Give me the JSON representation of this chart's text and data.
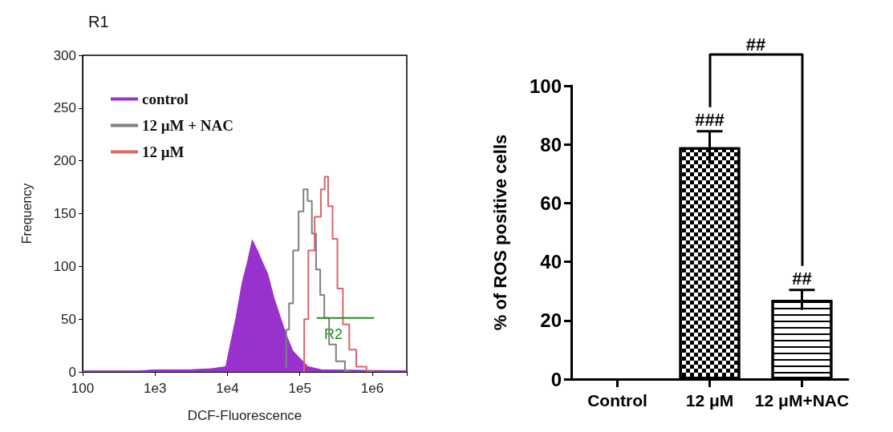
{
  "chart_data": [
    {
      "type": "step",
      "title": "R1",
      "xlabel": "DCF-Fluorescence",
      "ylabel": "Frequency",
      "log": "x",
      "xlim": [
        100,
        3000000
      ],
      "xticks": [
        100,
        {
          "value": 1000,
          "label": "1e3"
        },
        {
          "value": 10000,
          "label": "1e4"
        },
        {
          "value": 100000,
          "label": "1e5"
        },
        {
          "value": 1000000,
          "label": "1e6"
        }
      ],
      "ylim": [
        0,
        300
      ],
      "yticks": [
        0,
        50,
        100,
        150,
        200,
        250,
        300
      ],
      "legend": "top left",
      "annotations": [
        {
          "text": "R2",
          "x": 290000,
          "y": 29
        }
      ],
      "series": [
        {
          "name": "control",
          "type": "area",
          "color": "#9932cc",
          "x": [
            100,
            600,
            1000,
            3000,
            6000,
            9500,
            10500,
            13000,
            16000,
            19000,
            22000,
            26000,
            30000,
            36000,
            44000,
            55000,
            65000,
            80000,
            100000,
            130000,
            200000,
            3000000
          ],
          "values": [
            1,
            1,
            2,
            2,
            3,
            5,
            20,
            50,
            85,
            105,
            125,
            115,
            105,
            93,
            70,
            50,
            35,
            20,
            13,
            5,
            2,
            1
          ]
        },
        {
          "name": "12 μM + NAC",
          "color": "#808080",
          "x": [
            62000,
            68000,
            74000,
            88000,
            105000,
            120000,
            137000,
            157000,
            179000,
            204000,
            232000,
            277000,
            360000,
            490000
          ],
          "values": [
            5,
            40,
            65,
            115,
            152,
            173,
            162,
            131,
            97,
            73,
            51,
            26,
            10,
            1
          ]
        },
        {
          "name": "12 μM",
          "color": "#d9666b",
          "x": [
            110000,
            120000,
            143000,
            179000,
            213000,
            228000,
            265000,
            303000,
            360000,
            430000,
            540000,
            670000,
            1040000
          ],
          "values": [
            1,
            50,
            115,
            147,
            173,
            185,
            157,
            126,
            79,
            45,
            21,
            5,
            1
          ]
        },
        {
          "type": "line",
          "color": "#228b22",
          "x": [
            171000,
            1060000
          ],
          "values": [
            51,
            51
          ]
        }
      ]
    },
    {
      "type": "bar",
      "ylabel": "% of ROS positive cells",
      "categories": [
        "Control",
        "12 μM",
        "12 μM+NAC"
      ],
      "values": [
        null,
        79,
        27
      ],
      "errors": [
        null,
        5.5,
        3.4
      ],
      "color": "#ffffff",
      "ylim": [
        0,
        100
      ],
      "yticks": [
        0,
        20,
        40,
        60,
        80,
        100
      ],
      "annotations": [
        {
          "text": "###",
          "x": "12 μM",
          "y": 84.5
        },
        {
          "text": "##",
          "x": "12 μM+NAC",
          "y": 30.4
        },
        "##"
      ]
    }
  ]
}
